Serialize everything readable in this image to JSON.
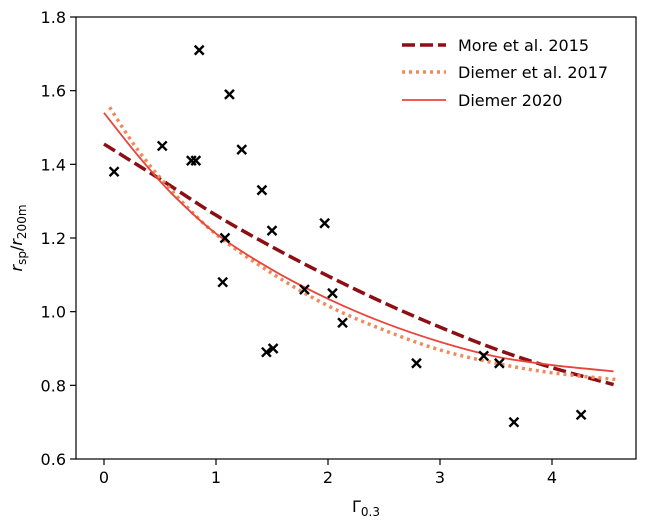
{
  "chart_data": {
    "type": "scatter",
    "xlabel": {
      "main": "Γ",
      "sub": "0.3"
    },
    "ylabel": {
      "r1": "r",
      "s1": "sp",
      "slash": "/",
      "r2": "r",
      "s2": "200m"
    },
    "xlim": [
      -0.25,
      4.75
    ],
    "ylim": [
      0.6,
      1.8
    ],
    "xticks": [
      0,
      1,
      2,
      3,
      4
    ],
    "yticks": [
      0.6,
      0.8,
      1.0,
      1.2,
      1.4,
      1.6,
      1.8
    ],
    "ytick_labels": [
      "0.6",
      "0.8",
      "1.0",
      "1.2",
      "1.4",
      "1.6",
      "1.8"
    ],
    "grid": false,
    "legend_position": "top-right",
    "points": {
      "marker": "x",
      "color": "#000000",
      "x": [
        0.09,
        0.52,
        0.78,
        0.82,
        0.85,
        1.06,
        1.08,
        1.12,
        1.23,
        1.41,
        1.45,
        1.5,
        1.51,
        1.79,
        1.97,
        2.04,
        2.13,
        2.79,
        3.39,
        3.53,
        3.66,
        4.26
      ],
      "y": [
        1.38,
        1.45,
        1.41,
        1.41,
        1.71,
        1.08,
        1.2,
        1.59,
        1.44,
        1.33,
        0.89,
        1.22,
        0.9,
        1.06,
        1.24,
        1.05,
        0.97,
        0.86,
        0.88,
        0.86,
        0.7,
        0.72
      ]
    },
    "series": [
      {
        "name": "More et al. 2015",
        "style": "dashed",
        "color": "#8b0f14",
        "x": [
          0.0,
          0.5,
          1.0,
          1.5,
          2.0,
          2.5,
          3.0,
          3.5,
          4.0,
          4.55
        ],
        "y": [
          1.455,
          1.36,
          1.262,
          1.176,
          1.097,
          1.024,
          0.958,
          0.898,
          0.848,
          0.802
        ]
      },
      {
        "name": "Diemer et al. 2017",
        "style": "dotted",
        "color": "#f08a5d",
        "x": [
          0.05,
          0.3,
          0.6,
          1.0,
          1.5,
          2.0,
          2.5,
          3.0,
          3.5,
          4.0,
          4.6
        ],
        "y": [
          1.555,
          1.44,
          1.33,
          1.21,
          1.104,
          1.016,
          0.95,
          0.896,
          0.86,
          0.834,
          0.815
        ]
      },
      {
        "name": "Diemer 2020",
        "style": "solid",
        "color": "#e8463b",
        "x": [
          0.0,
          0.3,
          0.6,
          1.0,
          1.5,
          2.0,
          2.5,
          3.0,
          3.5,
          4.0,
          4.55
        ],
        "y": [
          1.54,
          1.425,
          1.322,
          1.212,
          1.114,
          1.035,
          0.97,
          0.918,
          0.878,
          0.855,
          0.838
        ]
      }
    ]
  }
}
